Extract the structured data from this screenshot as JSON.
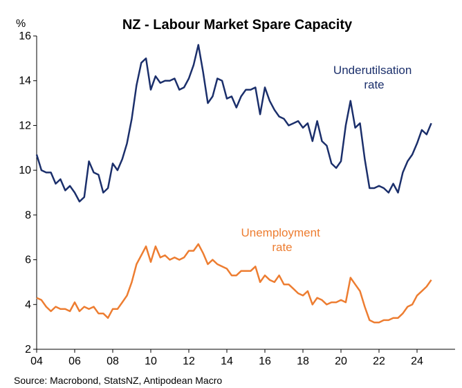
{
  "chart_data": {
    "type": "line",
    "title": "NZ - Labour Market Spare Capacity",
    "ylabel": "%",
    "ylim": [
      2,
      16
    ],
    "yticks": [
      2,
      4,
      6,
      8,
      10,
      12,
      14,
      16
    ],
    "xlim": [
      2004.0,
      2026.0
    ],
    "xticks": [
      {
        "value": 2004,
        "label": "04"
      },
      {
        "value": 2006,
        "label": "06"
      },
      {
        "value": 2008,
        "label": "08"
      },
      {
        "value": 2010,
        "label": "10"
      },
      {
        "value": 2012,
        "label": "12"
      },
      {
        "value": 2014,
        "label": "14"
      },
      {
        "value": 2016,
        "label": "16"
      },
      {
        "value": 2018,
        "label": "18"
      },
      {
        "value": 2020,
        "label": "20"
      },
      {
        "value": 2022,
        "label": "22"
      },
      {
        "value": 2024,
        "label": "24"
      }
    ],
    "grid": false,
    "source": "Source: Macrobond, StatsNZ, Antipodean Macro",
    "series": [
      {
        "name": "Underutilsation rate",
        "label_lines": [
          "Underutilsation",
          "rate"
        ],
        "color": "#1b2f6b",
        "x": [
          2004.0,
          2004.25,
          2004.5,
          2004.75,
          2005.0,
          2005.25,
          2005.5,
          2005.75,
          2006.0,
          2006.25,
          2006.5,
          2006.75,
          2007.0,
          2007.25,
          2007.5,
          2007.75,
          2008.0,
          2008.25,
          2008.5,
          2008.75,
          2009.0,
          2009.25,
          2009.5,
          2009.75,
          2010.0,
          2010.25,
          2010.5,
          2010.75,
          2011.0,
          2011.25,
          2011.5,
          2011.75,
          2012.0,
          2012.25,
          2012.5,
          2012.75,
          2013.0,
          2013.25,
          2013.5,
          2013.75,
          2014.0,
          2014.25,
          2014.5,
          2014.75,
          2015.0,
          2015.25,
          2015.5,
          2015.75,
          2016.0,
          2016.25,
          2016.5,
          2016.75,
          2017.0,
          2017.25,
          2017.5,
          2017.75,
          2018.0,
          2018.25,
          2018.5,
          2018.75,
          2019.0,
          2019.25,
          2019.5,
          2019.75,
          2020.0,
          2020.25,
          2020.5,
          2020.75,
          2021.0,
          2021.25,
          2021.5,
          2021.75,
          2022.0,
          2022.25,
          2022.5,
          2022.75,
          2023.0,
          2023.25,
          2023.5,
          2023.75,
          2024.0,
          2024.25,
          2024.5,
          2024.75
        ],
        "values": [
          10.7,
          10.0,
          9.9,
          9.9,
          9.4,
          9.6,
          9.1,
          9.3,
          9.0,
          8.6,
          8.8,
          10.4,
          9.9,
          9.8,
          9.0,
          9.2,
          10.3,
          10.0,
          10.5,
          11.2,
          12.3,
          13.8,
          14.8,
          15.0,
          13.6,
          14.2,
          13.9,
          14.0,
          14.0,
          14.1,
          13.6,
          13.7,
          14.1,
          14.7,
          15.6,
          14.4,
          13.0,
          13.3,
          14.1,
          14.0,
          13.2,
          13.3,
          12.8,
          13.3,
          13.6,
          13.6,
          13.7,
          12.5,
          13.7,
          13.1,
          12.7,
          12.4,
          12.3,
          12.0,
          12.1,
          12.2,
          11.9,
          12.1,
          11.3,
          12.2,
          11.3,
          11.1,
          10.3,
          10.1,
          10.4,
          12.0,
          13.1,
          11.9,
          12.1,
          10.5,
          9.2,
          9.2,
          9.3,
          9.2,
          9.0,
          9.4,
          9.0,
          9.9,
          10.4,
          10.7,
          11.2,
          11.8,
          11.6,
          12.1
        ]
      },
      {
        "name": "Unemployment rate",
        "label_lines": [
          "Unemployment",
          "rate"
        ],
        "color": "#ed7d31",
        "x": [
          2004.0,
          2004.25,
          2004.5,
          2004.75,
          2005.0,
          2005.25,
          2005.5,
          2005.75,
          2006.0,
          2006.25,
          2006.5,
          2006.75,
          2007.0,
          2007.25,
          2007.5,
          2007.75,
          2008.0,
          2008.25,
          2008.5,
          2008.75,
          2009.0,
          2009.25,
          2009.5,
          2009.75,
          2010.0,
          2010.25,
          2010.5,
          2010.75,
          2011.0,
          2011.25,
          2011.5,
          2011.75,
          2012.0,
          2012.25,
          2012.5,
          2012.75,
          2013.0,
          2013.25,
          2013.5,
          2013.75,
          2014.0,
          2014.25,
          2014.5,
          2014.75,
          2015.0,
          2015.25,
          2015.5,
          2015.75,
          2016.0,
          2016.25,
          2016.5,
          2016.75,
          2017.0,
          2017.25,
          2017.5,
          2017.75,
          2018.0,
          2018.25,
          2018.5,
          2018.75,
          2019.0,
          2019.25,
          2019.5,
          2019.75,
          2020.0,
          2020.25,
          2020.5,
          2020.75,
          2021.0,
          2021.25,
          2021.5,
          2021.75,
          2022.0,
          2022.25,
          2022.5,
          2022.75,
          2023.0,
          2023.25,
          2023.5,
          2023.75,
          2024.0,
          2024.25,
          2024.5,
          2024.75
        ],
        "values": [
          4.3,
          4.2,
          3.9,
          3.7,
          3.9,
          3.8,
          3.8,
          3.7,
          4.1,
          3.7,
          3.9,
          3.8,
          3.9,
          3.6,
          3.6,
          3.4,
          3.8,
          3.8,
          4.1,
          4.4,
          5.0,
          5.8,
          6.2,
          6.6,
          5.9,
          6.6,
          6.1,
          6.2,
          6.0,
          6.1,
          6.0,
          6.1,
          6.4,
          6.4,
          6.7,
          6.3,
          5.8,
          6.0,
          5.8,
          5.7,
          5.6,
          5.3,
          5.3,
          5.5,
          5.5,
          5.5,
          5.7,
          5.0,
          5.3,
          5.1,
          5.0,
          5.3,
          4.9,
          4.9,
          4.7,
          4.5,
          4.4,
          4.6,
          4.0,
          4.3,
          4.2,
          4.0,
          4.1,
          4.1,
          4.2,
          4.1,
          5.2,
          4.9,
          4.6,
          3.9,
          3.3,
          3.2,
          3.2,
          3.3,
          3.3,
          3.4,
          3.4,
          3.6,
          3.9,
          4.0,
          4.4,
          4.6,
          4.8,
          5.1
        ]
      }
    ]
  }
}
